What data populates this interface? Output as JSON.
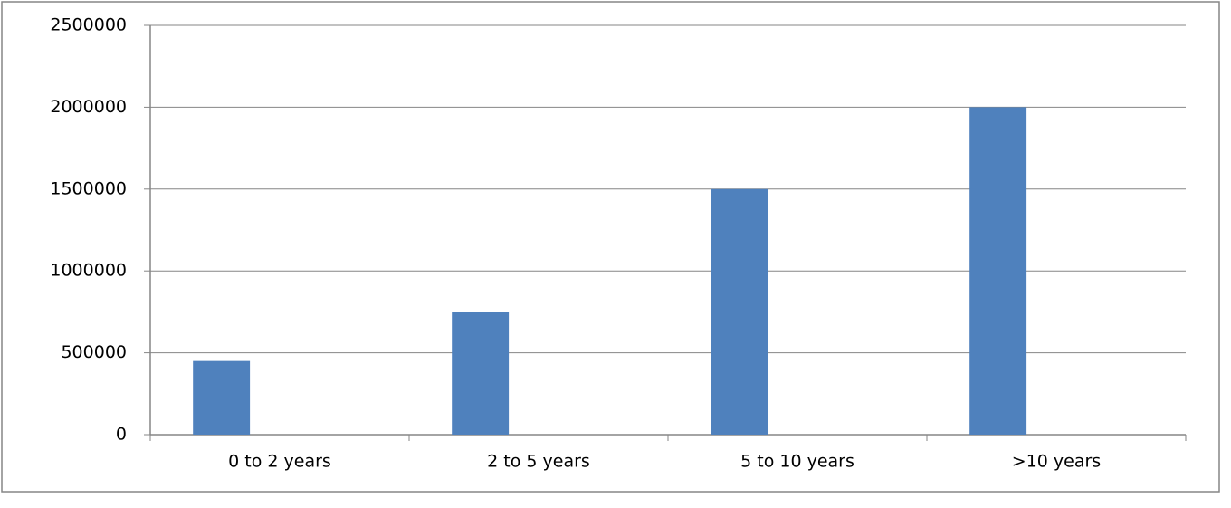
{
  "chart_data": {
    "type": "bar",
    "categories": [
      "0 to 2 years",
      "2 to 5 years",
      "5 to 10 years",
      ">10 years"
    ],
    "values": [
      450000,
      750000,
      1500000,
      2000000
    ],
    "color": "#4f81bd",
    "ylim": [
      0,
      2500000
    ],
    "yticks": [
      0,
      500000,
      1000000,
      1500000,
      2000000,
      2500000
    ],
    "grid": true
  }
}
